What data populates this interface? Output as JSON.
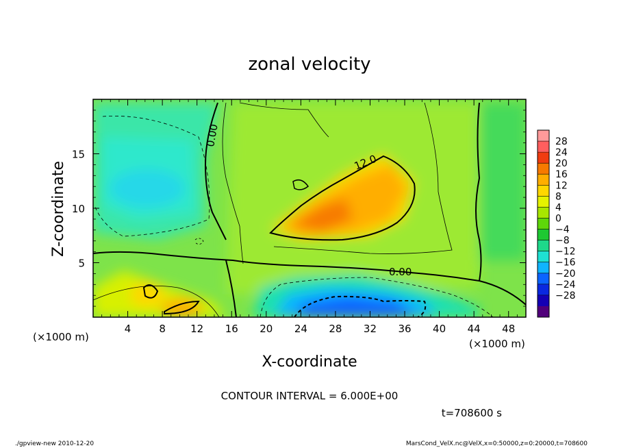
{
  "chart_data": {
    "type": "heatmap",
    "title": "zonal velocity",
    "xlabel": "X-coordinate",
    "ylabel": "Z-coordinate",
    "x_unit": "(×1000 m)",
    "y_unit": "(×1000 m)",
    "xlim": [
      0,
      50
    ],
    "ylim": [
      0,
      20
    ],
    "x_ticks": [
      4,
      8,
      12,
      16,
      20,
      24,
      28,
      32,
      36,
      40,
      44,
      48
    ],
    "y_ticks": [
      5,
      10,
      15
    ],
    "contour_interval_text": "CONTOUR INTERVAL = 6.000E+00",
    "contour_labels": [
      "0.00",
      "12.0",
      "0.00"
    ],
    "time_label": "t=708600 s",
    "colorbar": {
      "ticks": [
        "28",
        "24",
        "20",
        "16",
        "12",
        "8",
        "4",
        "0",
        "−4",
        "−8",
        "−12",
        "−16",
        "−20",
        "−24",
        "−28"
      ],
      "colors": [
        "#ff9a9a",
        "#ff5e5e",
        "#f03c10",
        "#f77a00",
        "#ffae00",
        "#ffd700",
        "#e5f200",
        "#a8e600",
        "#5ed60a",
        "#1ec832",
        "#1ed88a",
        "#1ee0d2",
        "#10b4ff",
        "#0b64ff",
        "#0a28e0",
        "#1400b4",
        "#50007a"
      ]
    },
    "fields": {
      "background": "#7ee34a",
      "high_core": "#f07a10",
      "low_core": "#0b48ff",
      "left_low": "#2ee8cc"
    }
  },
  "footer": {
    "left": "./gpview-new  2010-12-20",
    "right": "MarsCond_VelX.nc@VelX,x=0:50000,z=0:20000,t=708600"
  }
}
